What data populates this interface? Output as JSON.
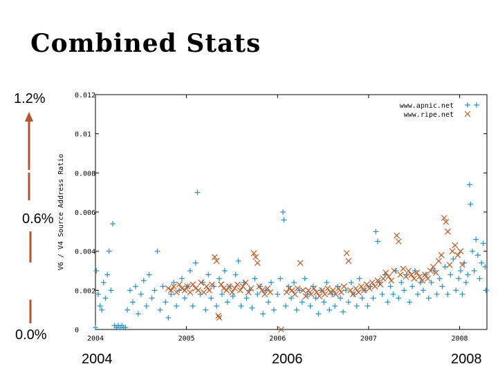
{
  "slide": {
    "title": "Combined Stats",
    "percent_labels": [
      "1.2%",
      "0.6%",
      "0.0%"
    ],
    "year_labels": [
      "2004",
      "2006",
      "2008"
    ]
  },
  "colors": {
    "apnic": "#1f8fd6",
    "ripe": "#c0561e",
    "arrow": "#b5532a"
  },
  "chart_data": {
    "type": "scatter",
    "title": "",
    "xlabel": "",
    "ylabel": "V6 / V4 Source Address Ratio",
    "xlim": [
      2004,
      2008.3
    ],
    "ylim": [
      0,
      0.012
    ],
    "xticks": [
      "2004",
      "2005",
      "2006",
      "2007",
      "2008"
    ],
    "yticks": [
      "0",
      "0.002",
      "0.004",
      "0.006",
      "0.008",
      "0.01",
      "0.012"
    ],
    "legend_position": "top-right",
    "series": [
      {
        "name": "www.apnic.net",
        "marker": "+",
        "points": [
          [
            2004.01,
            0.003
          ],
          [
            2004.03,
            0.0018
          ],
          [
            2004.05,
            0.0012
          ],
          [
            2004.07,
            0.001
          ],
          [
            2004.09,
            0.0024
          ],
          [
            2004.11,
            0.0016
          ],
          [
            2004.13,
            0.0028
          ],
          [
            2004.15,
            0.004
          ],
          [
            2004.17,
            0.002
          ],
          [
            2004.19,
            0.0054
          ],
          [
            2004.21,
            0.0002
          ],
          [
            2004.23,
            0.0001
          ],
          [
            2004.25,
            0.0002
          ],
          [
            2004.27,
            0.0001
          ],
          [
            2004.29,
            0.0002
          ],
          [
            2004.31,
            0.0001
          ],
          [
            2004.33,
            0.0001
          ],
          [
            2004.35,
            0.001
          ],
          [
            2004.38,
            0.002
          ],
          [
            2004.41,
            0.0014
          ],
          [
            2004.44,
            0.0022
          ],
          [
            2004.47,
            0.0008
          ],
          [
            2004.5,
            0.0018
          ],
          [
            2004.53,
            0.0025
          ],
          [
            2004.56,
            0.0012
          ],
          [
            2004.59,
            0.0028
          ],
          [
            2004.62,
            0.0016
          ],
          [
            2004.65,
            0.002
          ],
          [
            2004.68,
            0.004
          ],
          [
            2004.71,
            0.001
          ],
          [
            2004.74,
            0.0022
          ],
          [
            2004.77,
            0.0014
          ],
          [
            2004.8,
            0.0006
          ],
          [
            2004.83,
            0.0018
          ],
          [
            2004.86,
            0.0024
          ],
          [
            2004.89,
            0.0012
          ],
          [
            2004.92,
            0.002
          ],
          [
            2004.95,
            0.0026
          ],
          [
            2004.98,
            0.0016
          ],
          [
            2005.01,
            0.0022
          ],
          [
            2005.04,
            0.003
          ],
          [
            2005.07,
            0.0012
          ],
          [
            2005.1,
            0.0034
          ],
          [
            2005.12,
            0.007
          ],
          [
            2005.15,
            0.0018
          ],
          [
            2005.18,
            0.0024
          ],
          [
            2005.21,
            0.001
          ],
          [
            2005.24,
            0.0028
          ],
          [
            2005.27,
            0.0016
          ],
          [
            2005.3,
            0.0022
          ],
          [
            2005.33,
            0.0012
          ],
          [
            2005.36,
            0.0026
          ],
          [
            2005.39,
            0.0018
          ],
          [
            2005.42,
            0.003
          ],
          [
            2005.45,
            0.0014
          ],
          [
            2005.48,
            0.0022
          ],
          [
            2005.51,
            0.0017
          ],
          [
            2005.54,
            0.0028
          ],
          [
            2005.57,
            0.0035
          ],
          [
            2005.6,
            0.0012
          ],
          [
            2005.63,
            0.0024
          ],
          [
            2005.66,
            0.0016
          ],
          [
            2005.69,
            0.002
          ],
          [
            2005.72,
            0.0011
          ],
          [
            2005.75,
            0.0026
          ],
          [
            2005.78,
            0.0018
          ],
          [
            2005.81,
            0.0022
          ],
          [
            2005.84,
            0.0008
          ],
          [
            2005.87,
            0.002
          ],
          [
            2005.9,
            0.0014
          ],
          [
            2005.93,
            0.0024
          ],
          [
            2005.96,
            0.001
          ],
          [
            2006.0,
            0.0018
          ],
          [
            2006.03,
            0.0026
          ],
          [
            2006.06,
            0.006
          ],
          [
            2006.07,
            0.0056
          ],
          [
            2006.09,
            0.0012
          ],
          [
            2006.12,
            0.0022
          ],
          [
            2006.15,
            0.0016
          ],
          [
            2006.18,
            0.0024
          ],
          [
            2006.21,
            0.001
          ],
          [
            2006.24,
            0.002
          ],
          [
            2006.27,
            0.0014
          ],
          [
            2006.3,
            0.0026
          ],
          [
            2006.33,
            0.0018
          ],
          [
            2006.36,
            0.0012
          ],
          [
            2006.39,
            0.0022
          ],
          [
            2006.42,
            0.0016
          ],
          [
            2006.45,
            0.0008
          ],
          [
            2006.48,
            0.002
          ],
          [
            2006.51,
            0.0014
          ],
          [
            2006.54,
            0.0024
          ],
          [
            2006.57,
            0.001
          ],
          [
            2006.6,
            0.0018
          ],
          [
            2006.63,
            0.0012
          ],
          [
            2006.66,
            0.0022
          ],
          [
            2006.69,
            0.0016
          ],
          [
            2006.72,
            0.0009
          ],
          [
            2006.75,
            0.002
          ],
          [
            2006.78,
            0.0014
          ],
          [
            2006.81,
            0.0024
          ],
          [
            2006.84,
            0.0018
          ],
          [
            2006.87,
            0.0012
          ],
          [
            2006.9,
            0.0026
          ],
          [
            2006.93,
            0.0016
          ],
          [
            2006.96,
            0.002
          ],
          [
            2006.99,
            0.0012
          ],
          [
            2007.02,
            0.0022
          ],
          [
            2007.05,
            0.0016
          ],
          [
            2007.08,
            0.005
          ],
          [
            2007.1,
            0.0045
          ],
          [
            2007.12,
            0.0024
          ],
          [
            2007.15,
            0.0018
          ],
          [
            2007.18,
            0.0028
          ],
          [
            2007.21,
            0.0014
          ],
          [
            2007.24,
            0.0022
          ],
          [
            2007.27,
            0.0018
          ],
          [
            2007.3,
            0.003
          ],
          [
            2007.33,
            0.0016
          ],
          [
            2007.36,
            0.0024
          ],
          [
            2007.39,
            0.002
          ],
          [
            2007.42,
            0.0028
          ],
          [
            2007.45,
            0.0014
          ],
          [
            2007.48,
            0.0022
          ],
          [
            2007.51,
            0.003
          ],
          [
            2007.54,
            0.0018
          ],
          [
            2007.57,
            0.0024
          ],
          [
            2007.6,
            0.002
          ],
          [
            2007.63,
            0.0028
          ],
          [
            2007.66,
            0.0016
          ],
          [
            2007.69,
            0.0024
          ],
          [
            2007.72,
            0.003
          ],
          [
            2007.75,
            0.0018
          ],
          [
            2007.78,
            0.0026
          ],
          [
            2007.81,
            0.0022
          ],
          [
            2007.84,
            0.0032
          ],
          [
            2007.87,
            0.0018
          ],
          [
            2007.9,
            0.0028
          ],
          [
            2007.93,
            0.0036
          ],
          [
            2007.96,
            0.002
          ],
          [
            2007.99,
            0.0026
          ],
          [
            2008.01,
            0.003
          ],
          [
            2008.03,
            0.0018
          ],
          [
            2008.05,
            0.0034
          ],
          [
            2008.07,
            0.0024
          ],
          [
            2008.09,
            0.0028
          ],
          [
            2008.11,
            0.0074
          ],
          [
            2008.12,
            0.0064
          ],
          [
            2008.14,
            0.004
          ],
          [
            2008.16,
            0.003
          ],
          [
            2008.18,
            0.0046
          ],
          [
            2008.2,
            0.0038
          ],
          [
            2008.22,
            0.0026
          ],
          [
            2008.24,
            0.0034
          ],
          [
            2008.26,
            0.0044
          ],
          [
            2008.28,
            0.0032
          ],
          [
            2008.29,
            0.002
          ],
          [
            2004.0,
            0.0001
          ]
        ]
      },
      {
        "name": "www.ripe.net",
        "marker": "x",
        "points": [
          [
            2004.8,
            0.0021
          ],
          [
            2004.83,
            0.002
          ],
          [
            2004.86,
            0.0022
          ],
          [
            2004.89,
            0.0019
          ],
          [
            2004.92,
            0.0023
          ],
          [
            2004.95,
            0.0021
          ],
          [
            2004.98,
            0.002
          ],
          [
            2005.01,
            0.0022
          ],
          [
            2005.04,
            0.0019
          ],
          [
            2005.07,
            0.0023
          ],
          [
            2005.1,
            0.0021
          ],
          [
            2005.13,
            0.002
          ],
          [
            2005.16,
            0.0024
          ],
          [
            2005.19,
            0.0019
          ],
          [
            2005.22,
            0.0022
          ],
          [
            2005.25,
            0.002
          ],
          [
            2005.28,
            0.0023
          ],
          [
            2005.31,
            0.0037
          ],
          [
            2005.33,
            0.0035
          ],
          [
            2005.35,
            0.0007
          ],
          [
            2005.36,
            0.0006
          ],
          [
            2005.38,
            0.0023
          ],
          [
            2005.41,
            0.0021
          ],
          [
            2005.44,
            0.002
          ],
          [
            2005.47,
            0.0022
          ],
          [
            2005.5,
            0.0019
          ],
          [
            2005.53,
            0.0021
          ],
          [
            2005.56,
            0.0023
          ],
          [
            2005.59,
            0.002
          ],
          [
            2005.62,
            0.0022
          ],
          [
            2005.65,
            0.0024
          ],
          [
            2005.68,
            0.0019
          ],
          [
            2005.71,
            0.0021
          ],
          [
            2005.74,
            0.0039
          ],
          [
            2005.76,
            0.0037
          ],
          [
            2005.78,
            0.0034
          ],
          [
            2005.8,
            0.0022
          ],
          [
            2005.83,
            0.002
          ],
          [
            2005.86,
            0.0018
          ],
          [
            2005.89,
            0.0021
          ],
          [
            2005.92,
            0.0019
          ],
          [
            2006.04,
            0.0
          ],
          [
            2006.1,
            0.0019
          ],
          [
            2006.13,
            0.0021
          ],
          [
            2006.16,
            0.002
          ],
          [
            2006.19,
            0.0018
          ],
          [
            2006.22,
            0.0021
          ],
          [
            2006.25,
            0.0034
          ],
          [
            2006.28,
            0.002
          ],
          [
            2006.31,
            0.0017
          ],
          [
            2006.34,
            0.002
          ],
          [
            2006.37,
            0.0018
          ],
          [
            2006.4,
            0.0021
          ],
          [
            2006.43,
            0.0019
          ],
          [
            2006.46,
            0.0017
          ],
          [
            2006.49,
            0.002
          ],
          [
            2006.52,
            0.0018
          ],
          [
            2006.55,
            0.0021
          ],
          [
            2006.58,
            0.0019
          ],
          [
            2006.61,
            0.002
          ],
          [
            2006.64,
            0.0018
          ],
          [
            2006.67,
            0.0021
          ],
          [
            2006.7,
            0.0019
          ],
          [
            2006.73,
            0.0022
          ],
          [
            2006.76,
            0.0039
          ],
          [
            2006.78,
            0.0035
          ],
          [
            2006.8,
            0.002
          ],
          [
            2006.83,
            0.0018
          ],
          [
            2006.86,
            0.0021
          ],
          [
            2006.89,
            0.0019
          ],
          [
            2006.92,
            0.0022
          ],
          [
            2006.95,
            0.002
          ],
          [
            2006.98,
            0.0023
          ],
          [
            2007.01,
            0.0021
          ],
          [
            2007.04,
            0.0024
          ],
          [
            2007.07,
            0.0022
          ],
          [
            2007.1,
            0.0025
          ],
          [
            2007.13,
            0.0023
          ],
          [
            2007.16,
            0.0026
          ],
          [
            2007.19,
            0.0029
          ],
          [
            2007.22,
            0.0027
          ],
          [
            2007.25,
            0.0025
          ],
          [
            2007.28,
            0.003
          ],
          [
            2007.31,
            0.0048
          ],
          [
            2007.33,
            0.0045
          ],
          [
            2007.35,
            0.0028
          ],
          [
            2007.38,
            0.0031
          ],
          [
            2007.41,
            0.0027
          ],
          [
            2007.44,
            0.003
          ],
          [
            2007.47,
            0.0028
          ],
          [
            2007.5,
            0.0026
          ],
          [
            2007.53,
            0.0029
          ],
          [
            2007.56,
            0.0027
          ],
          [
            2007.59,
            0.0025
          ],
          [
            2007.62,
            0.0028
          ],
          [
            2007.65,
            0.0026
          ],
          [
            2007.68,
            0.003
          ],
          [
            2007.71,
            0.0032
          ],
          [
            2007.74,
            0.0029
          ],
          [
            2007.77,
            0.0035
          ],
          [
            2007.8,
            0.0038
          ],
          [
            2007.83,
            0.0057
          ],
          [
            2007.85,
            0.0055
          ],
          [
            2007.87,
            0.005
          ],
          [
            2007.89,
            0.0033
          ],
          [
            2007.92,
            0.004
          ],
          [
            2007.95,
            0.0043
          ],
          [
            2007.98,
            0.0038
          ],
          [
            2008.01,
            0.004
          ],
          [
            2008.03,
            0.0033
          ]
        ]
      }
    ]
  }
}
